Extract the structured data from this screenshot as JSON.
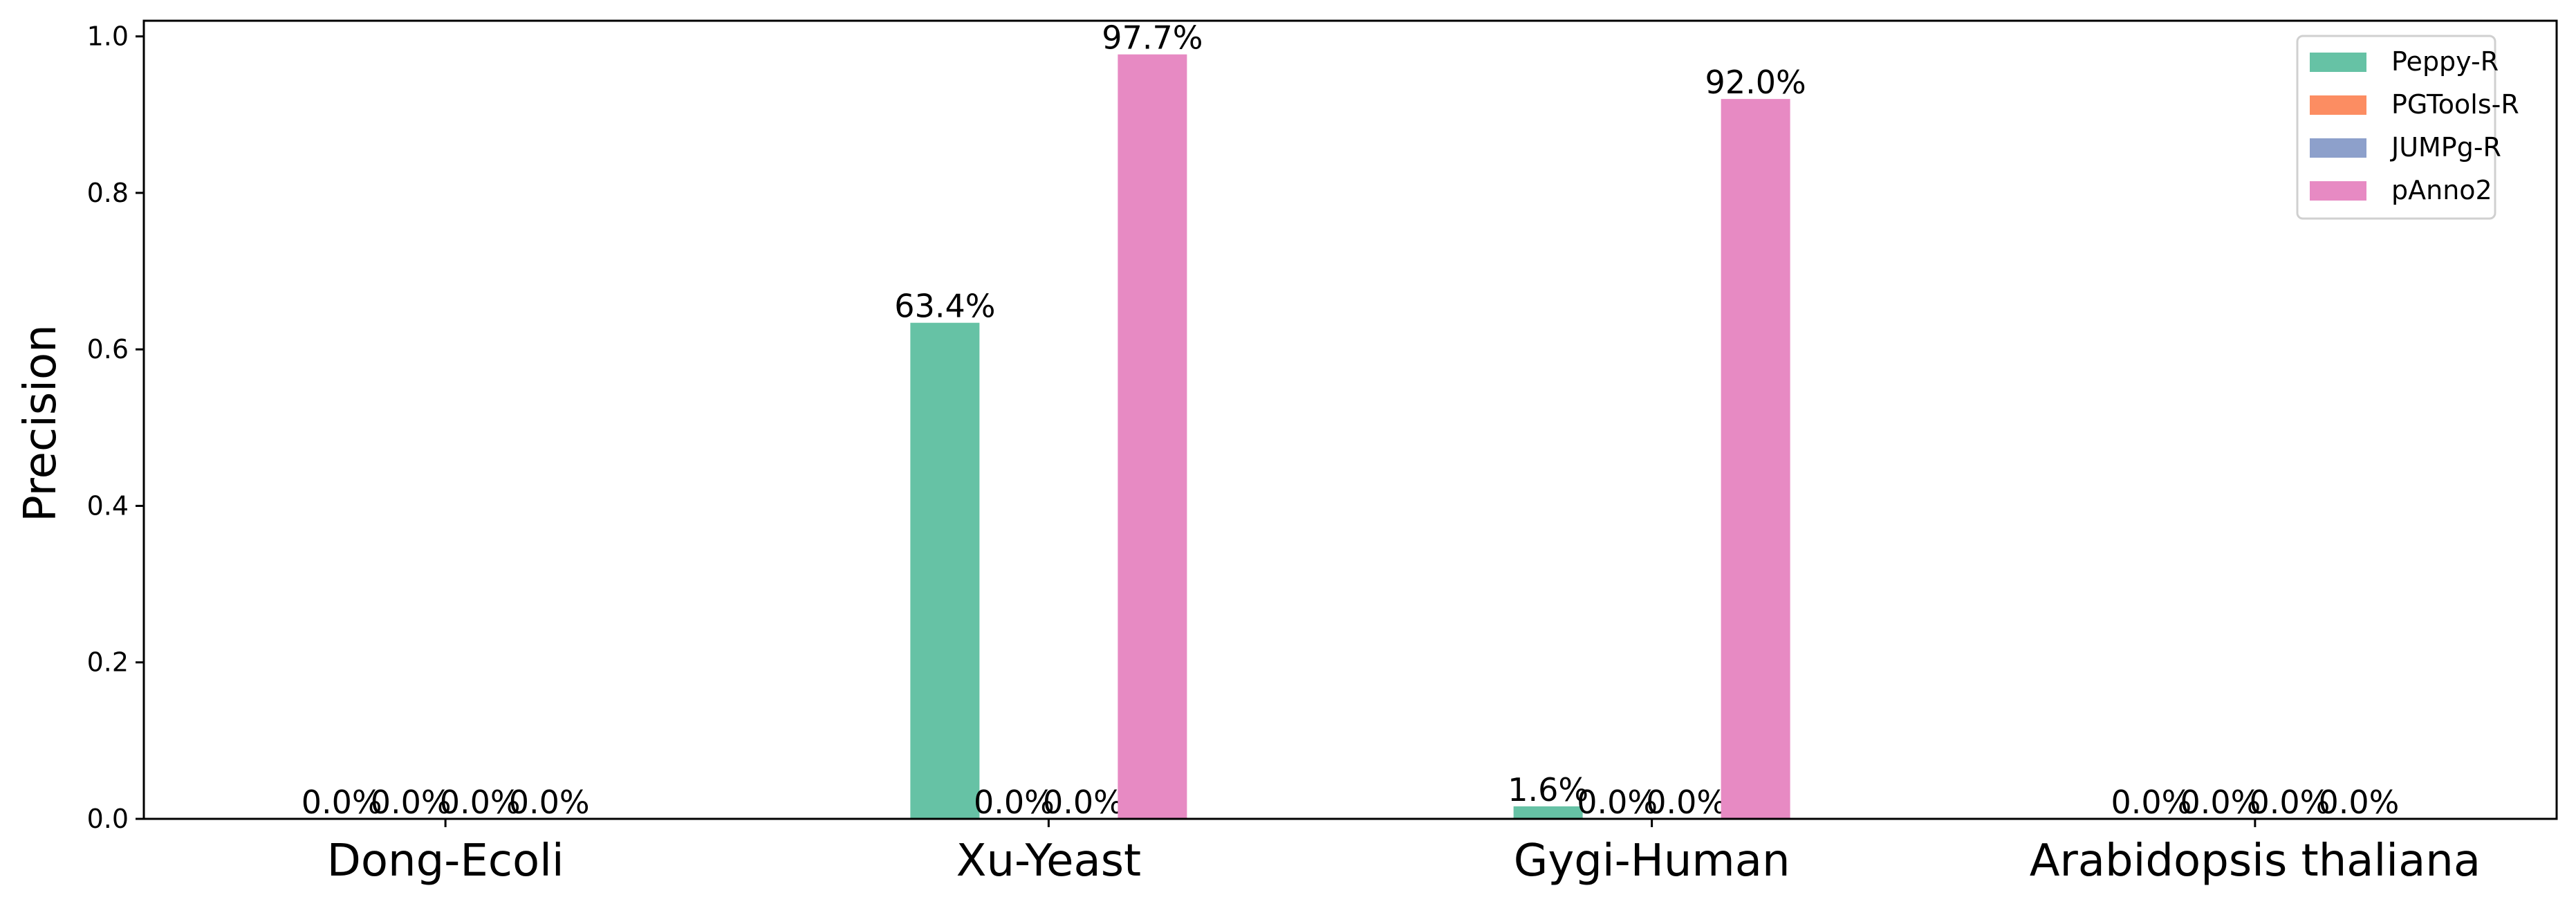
{
  "chart_data": {
    "type": "bar",
    "categories": [
      "Dong-Ecoli",
      "Xu-Yeast",
      "Gygi-Human",
      "Arabidopsis thaliana"
    ],
    "series": [
      {
        "name": "Peppy-R",
        "color": "#66c2a5",
        "values": [
          0.0,
          0.634,
          0.016,
          0.0
        ],
        "labels": [
          "0.0%",
          "63.4%",
          "1.6%",
          "0.0%"
        ]
      },
      {
        "name": "PGTools-R",
        "color": "#fc8d62",
        "values": [
          0.0,
          0.0,
          0.0,
          0.0
        ],
        "labels": [
          "0.0%",
          "0.0%",
          "0.0%",
          "0.0%"
        ]
      },
      {
        "name": "JUMPg-R",
        "color": "#8da0cb",
        "values": [
          0.0,
          0.0,
          0.0,
          0.0
        ],
        "labels": [
          "0.0%",
          "0.0%",
          "0.0%",
          "0.0%"
        ]
      },
      {
        "name": "pAnno2",
        "color": "#e78ac3",
        "values": [
          0.0,
          0.977,
          0.92,
          0.0
        ],
        "labels": [
          "0.0%",
          "97.7%",
          "92.0%",
          "0.0%"
        ]
      }
    ],
    "ylabel": "Precision",
    "xlabel": "",
    "ylim": [
      0,
      1.02
    ],
    "yticks": [
      "0.0",
      "0.2",
      "0.4",
      "0.6",
      "0.8",
      "1.0"
    ],
    "legend_position": "top-right",
    "grid": false
  }
}
